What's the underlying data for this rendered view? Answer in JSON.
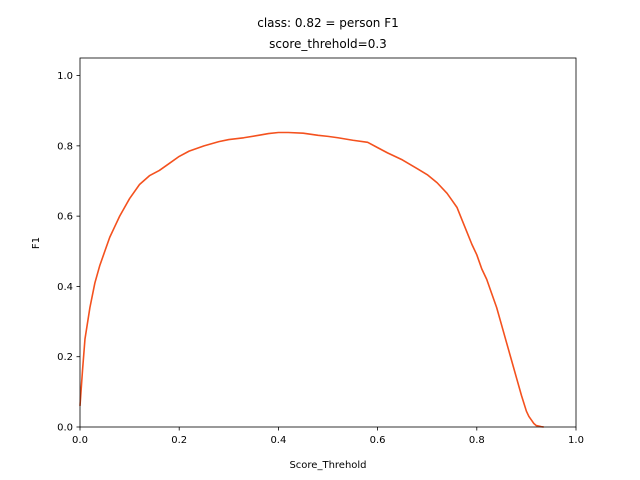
{
  "chart_data": {
    "type": "line",
    "title": "class: 0.82 = person F1",
    "subtitle": "score_threhold=0.3",
    "xlabel": "Score_Threhold",
    "ylabel": "F1",
    "xlim": [
      0.0,
      1.0
    ],
    "ylim": [
      0.0,
      1.05
    ],
    "x_ticks": [
      "0.0",
      "0.2",
      "0.4",
      "0.6",
      "0.8",
      "1.0"
    ],
    "y_ticks": [
      "0.0",
      "0.2",
      "0.4",
      "0.6",
      "0.8",
      "1.0"
    ],
    "grid": false,
    "line_color": "#f4511e",
    "series": [
      {
        "x": [
          0.0,
          0.005,
          0.01,
          0.02,
          0.03,
          0.04,
          0.05,
          0.06,
          0.07,
          0.08,
          0.1,
          0.12,
          0.14,
          0.16,
          0.18,
          0.2,
          0.22,
          0.25,
          0.28,
          0.3,
          0.33,
          0.36,
          0.38,
          0.4,
          0.42,
          0.45,
          0.48,
          0.5,
          0.52,
          0.55,
          0.58,
          0.6,
          0.62,
          0.65,
          0.68,
          0.7,
          0.72,
          0.74,
          0.75,
          0.76,
          0.77,
          0.78,
          0.79,
          0.8,
          0.81,
          0.82,
          0.83,
          0.84,
          0.85,
          0.86,
          0.87,
          0.88,
          0.89,
          0.9,
          0.905,
          0.91,
          0.915,
          0.92,
          0.93,
          0.935
        ],
        "y": [
          0.06,
          0.16,
          0.25,
          0.34,
          0.41,
          0.46,
          0.5,
          0.54,
          0.57,
          0.6,
          0.65,
          0.69,
          0.715,
          0.73,
          0.75,
          0.77,
          0.785,
          0.8,
          0.812,
          0.818,
          0.823,
          0.83,
          0.835,
          0.838,
          0.838,
          0.836,
          0.83,
          0.827,
          0.823,
          0.816,
          0.81,
          0.795,
          0.78,
          0.76,
          0.735,
          0.718,
          0.695,
          0.665,
          0.645,
          0.625,
          0.59,
          0.555,
          0.52,
          0.49,
          0.45,
          0.42,
          0.38,
          0.34,
          0.29,
          0.24,
          0.19,
          0.14,
          0.09,
          0.045,
          0.03,
          0.02,
          0.01,
          0.004,
          0.001,
          0.0
        ]
      }
    ]
  }
}
